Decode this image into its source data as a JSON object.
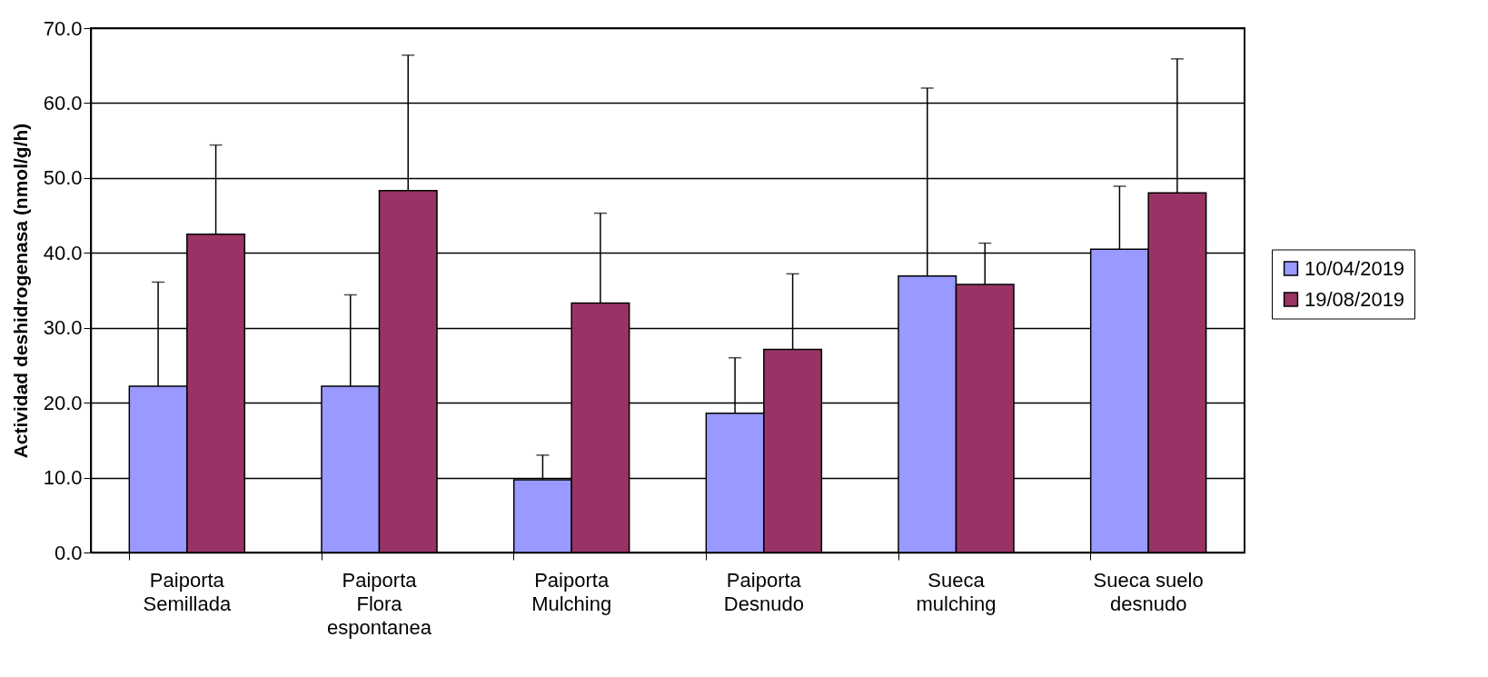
{
  "chart_data": {
    "type": "bar",
    "ylabel": "Actividad deshidrogenasa (nmol/g/h)",
    "categories": [
      "Paiporta Semillada",
      "Paiporta Flora espontanea",
      "Paiporta Mulching",
      "Paiporta Desnudo",
      "Sueca mulching",
      "Sueca suelo desnudo"
    ],
    "series": [
      {
        "name": "10/04/2019",
        "color": "#9999ff",
        "values": [
          22.2,
          22.2,
          9.7,
          18.6,
          36.9,
          40.5
        ],
        "errors": [
          [
            22.2,
            36.1
          ],
          [
            22.2,
            34.4
          ],
          [
            9.7,
            13.0
          ],
          [
            18.6,
            26.0
          ],
          [
            36.9,
            62.0
          ],
          [
            40.5,
            48.9
          ]
        ]
      },
      {
        "name": "19/08/2019",
        "color": "#993366",
        "values": [
          42.5,
          48.3,
          33.3,
          27.1,
          35.8,
          48.0
        ],
        "errors": [
          [
            42.5,
            54.4
          ],
          [
            48.3,
            66.4
          ],
          [
            33.3,
            45.3
          ],
          [
            27.1,
            37.2
          ],
          [
            35.8,
            41.3
          ],
          [
            48.0,
            65.9
          ]
        ]
      }
    ],
    "ylim": [
      0,
      70
    ],
    "yticks": [
      {
        "value": 0,
        "label": "0.0"
      },
      {
        "value": 10,
        "label": "10.0"
      },
      {
        "value": 20,
        "label": "20.0"
      },
      {
        "value": 30,
        "label": "30.0"
      },
      {
        "value": 40,
        "label": "40.0"
      },
      {
        "value": 50,
        "label": "50.0"
      },
      {
        "value": 60,
        "label": "60.0"
      },
      {
        "value": 70,
        "label": "70.0"
      }
    ],
    "grid": "y",
    "legend": "right"
  }
}
